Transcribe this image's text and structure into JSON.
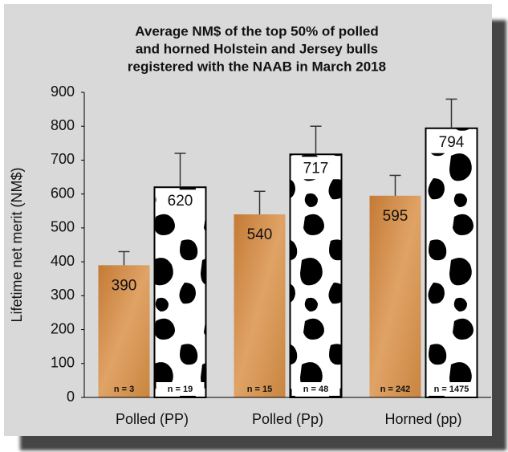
{
  "chart_data": {
    "type": "bar",
    "title": [
      "Average NM$ of the top 50% of polled",
      "and horned Holstein and Jersey bulls",
      "registered with the NAAB in March 2018"
    ],
    "y_label": "Lifetime net merit (NM$)",
    "categories": [
      "Polled (PP)",
      "Polled (Pp)",
      "Horned (pp)"
    ],
    "series": [
      {
        "color": "#d08a45",
        "values": [
          390,
          540,
          595
        ],
        "errors": [
          40,
          68,
          60
        ],
        "sample_labels": [
          "n = 3",
          "n = 15",
          "n = 242"
        ]
      },
      {
        "color": "#ffffff",
        "values": [
          620,
          717,
          794
        ],
        "errors": [
          100,
          83,
          86
        ],
        "sample_labels": [
          "n = 19",
          "n = 48",
          "n = 1475"
        ]
      }
    ],
    "ylim": [
      0,
      900
    ],
    "yticks": [
      0,
      100,
      200,
      300,
      400,
      500,
      600,
      700,
      800,
      900
    ],
    "grid": false
  }
}
